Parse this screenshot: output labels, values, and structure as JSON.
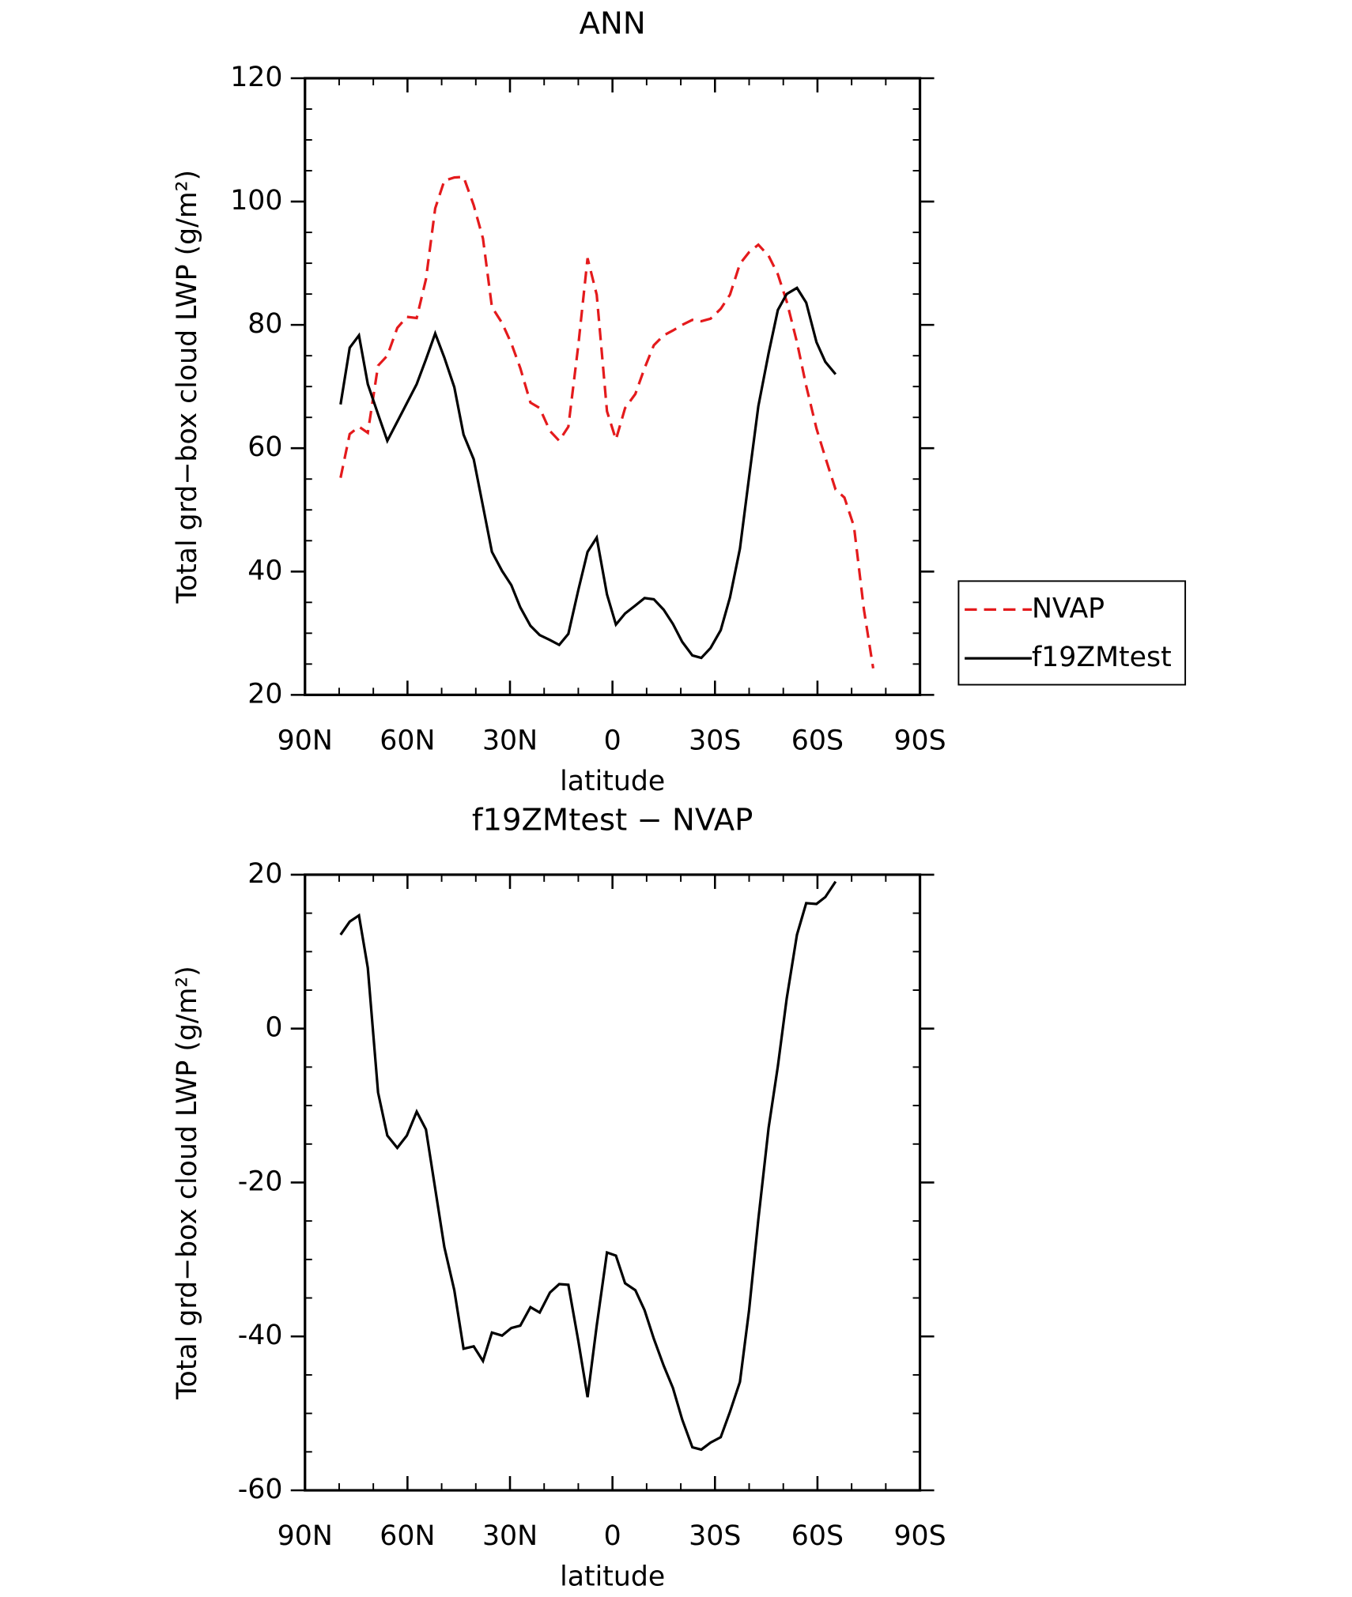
{
  "chart_data": [
    {
      "type": "line",
      "title": "ANN",
      "xlabel": "latitude",
      "ylabel": "Total grd−box cloud LWP (g/m²)",
      "xlim": [
        90,
        -90
      ],
      "xticks": [
        {
          "value": 90,
          "label": "90N"
        },
        {
          "value": 60,
          "label": "60N"
        },
        {
          "value": 30,
          "label": "30N"
        },
        0,
        {
          "value": -30,
          "label": "30S"
        },
        {
          "value": -60,
          "label": "60S"
        },
        {
          "value": -90,
          "label": "90S"
        }
      ],
      "minor_xticks": [
        80,
        70,
        50,
        40,
        20,
        10,
        -10,
        -20,
        -40,
        -50,
        -70,
        -80
      ],
      "ylim": [
        20,
        120
      ],
      "yticks": [
        20,
        40,
        60,
        80,
        100,
        120
      ],
      "minor_yticks": [
        25,
        30,
        35,
        45,
        50,
        55,
        65,
        70,
        75,
        85,
        90,
        95,
        105,
        110,
        115
      ],
      "legend": "right",
      "series": [
        {
          "name": "NVAP",
          "color": "#e41a1c",
          "dash": true,
          "x": [
            79.6,
            76.9,
            74.2,
            71.6,
            68.6,
            65.9,
            63,
            60.2,
            57.3,
            54.6,
            51.9,
            49.2,
            46.3,
            43.6,
            40.6,
            37.9,
            35.3,
            32.3,
            29.6,
            27,
            24,
            21.3,
            18.3,
            15.6,
            12.9,
            10,
            7.3,
            4.6,
            1.6,
            -1,
            -3.7,
            -6.7,
            -9.4,
            -12.1,
            -15,
            -17.7,
            -20.4,
            -23.4,
            -26,
            -28.7,
            -31.7,
            -34.4,
            -37.3,
            -40,
            -42.7,
            -45.7,
            -48.4,
            -51,
            -54,
            -56.7,
            -59.7,
            -62.3,
            -65.3,
            -67.9,
            -70.7,
            -73.6,
            -76.3
          ],
          "values": [
            55.2,
            62.3,
            63.5,
            62.5,
            73.4,
            75,
            79.5,
            81.3,
            81.1,
            87.4,
            98.9,
            103.4,
            103.9,
            104,
            99.4,
            94,
            82.9,
            80.3,
            77,
            73,
            67.4,
            66.5,
            62.8,
            61.2,
            63.5,
            76.7,
            90.8,
            84.9,
            66,
            61.4,
            66.5,
            68.8,
            73,
            76.7,
            78.3,
            79.1,
            80,
            80.8,
            80.6,
            81,
            82.6,
            84.9,
            89.9,
            91.8,
            93,
            91.2,
            88.2,
            83.8,
            77.2,
            70.1,
            63.2,
            58.5,
            53.3,
            52,
            47.3,
            33.8,
            24.3
          ]
        },
        {
          "name": "f19ZMtest",
          "color": "#000000",
          "dash": false,
          "x": [
            79.6,
            76.9,
            74.2,
            71.6,
            68.6,
            65.9,
            63,
            60.2,
            57.3,
            54.6,
            51.9,
            49.2,
            46.3,
            43.6,
            40.6,
            37.9,
            35.3,
            32.3,
            29.6,
            27,
            24,
            21.3,
            18.3,
            15.6,
            12.9,
            10,
            7.3,
            4.6,
            1.6,
            -1,
            -3.7,
            -6.7,
            -9.4,
            -12.1,
            -15,
            -17.7,
            -20.4,
            -23.4,
            -26,
            -28.7,
            -31.7,
            -34.4,
            -37.3,
            -40,
            -42.7,
            -45.7,
            -48.4,
            -51,
            -54,
            -56.7,
            -59.7,
            -62.3,
            -65.3
          ],
          "values": [
            67.1,
            76.3,
            78.3,
            70.4,
            65.5,
            61.2,
            64.3,
            67.3,
            70.4,
            74.4,
            78.6,
            74.7,
            69.9,
            62.2,
            58.2,
            50.6,
            43.2,
            40.1,
            37.8,
            34.2,
            31.2,
            29.7,
            28.9,
            28.1,
            29.9,
            37,
            43.2,
            45.5,
            36.3,
            31.4,
            33.2,
            34.5,
            35.7,
            35.5,
            33.8,
            31.5,
            28.6,
            26.4,
            26,
            27.6,
            30.5,
            35.8,
            43.7,
            55.3,
            66.8,
            75.4,
            82.4,
            85,
            86,
            83.6,
            77.2,
            74,
            72
          ]
        }
      ]
    },
    {
      "type": "line",
      "title": "f19ZMtest − NVAP",
      "xlabel": "latitude",
      "ylabel": "Total grd−box cloud LWP (g/m²)",
      "xlim": [
        90,
        -90
      ],
      "xticks": [
        {
          "value": 90,
          "label": "90N"
        },
        {
          "value": 60,
          "label": "60N"
        },
        {
          "value": 30,
          "label": "30N"
        },
        0,
        {
          "value": -30,
          "label": "30S"
        },
        {
          "value": -60,
          "label": "60S"
        },
        {
          "value": -90,
          "label": "90S"
        }
      ],
      "minor_xticks": [
        80,
        70,
        50,
        40,
        20,
        10,
        -10,
        -20,
        -40,
        -50,
        -70,
        -80
      ],
      "ylim": [
        -60,
        20
      ],
      "yticks": [
        -60,
        -40,
        -20,
        0,
        20
      ],
      "minor_yticks": [
        -55,
        -50,
        -45,
        -35,
        -30,
        -25,
        -15,
        -10,
        -5,
        5,
        10,
        15
      ],
      "series": [
        {
          "color": "#000000",
          "dash": false,
          "x": [
            79.6,
            76.9,
            74.2,
            71.6,
            68.6,
            65.9,
            63,
            60.2,
            57.3,
            54.6,
            51.9,
            49.2,
            46.3,
            43.6,
            40.6,
            37.9,
            35.3,
            32.3,
            29.6,
            27,
            24,
            21.3,
            18.3,
            15.6,
            12.9,
            10,
            7.3,
            4.6,
            1.6,
            -1,
            -3.7,
            -6.7,
            -9.4,
            -12.1,
            -15,
            -17.7,
            -20.4,
            -23.4,
            -26,
            -28.7,
            -31.7,
            -34.4,
            -37.3,
            -40,
            -42.7,
            -45.7,
            -48.4,
            -51,
            -54,
            -56.7,
            -59.7,
            -62.3,
            -65.3
          ],
          "values": [
            12.2,
            13.9,
            14.7,
            7.9,
            -8.3,
            -13.9,
            -15.5,
            -13.9,
            -10.8,
            -13.1,
            -20.8,
            -28.4,
            -34,
            -41.6,
            -41.3,
            -43.2,
            -39.5,
            -39.9,
            -38.9,
            -38.6,
            -36.2,
            -36.9,
            -34.3,
            -33.2,
            -33.3,
            -40.6,
            -47.9,
            -38.6,
            -29.1,
            -29.5,
            -33.1,
            -34,
            -36.6,
            -40.3,
            -43.8,
            -46.7,
            -50.8,
            -54.4,
            -54.7,
            -53.8,
            -53.1,
            -49.8,
            -45.9,
            -36.6,
            -24.8,
            -12.9,
            -4.9,
            3.9,
            12.2,
            16.3,
            16.2,
            17.1,
            19.1
          ]
        }
      ]
    }
  ]
}
